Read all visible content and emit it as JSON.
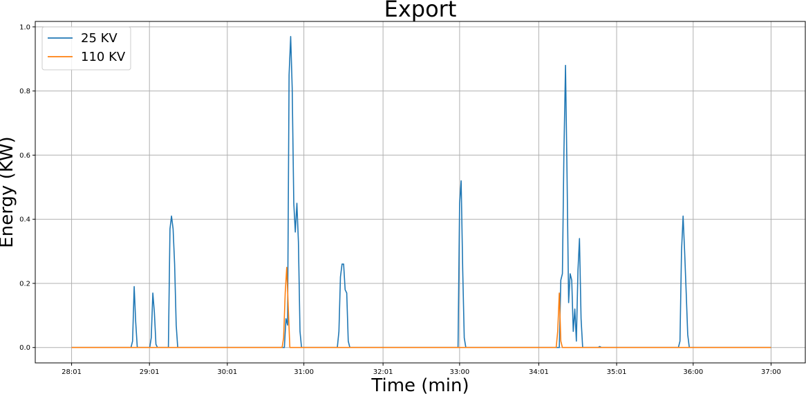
{
  "chart_data": {
    "type": "line",
    "title": "Export",
    "xlabel": "Time (min)",
    "ylabel": "Energy (KW)",
    "xlim": [
      27.55,
      37.44
    ],
    "ylim": [
      -0.048,
      1.017
    ],
    "x_ticks": [
      {
        "value": 28.0167,
        "label": "28:01"
      },
      {
        "value": 29.0167,
        "label": "29:01"
      },
      {
        "value": 30.0167,
        "label": "30:01"
      },
      {
        "value": 31.0,
        "label": "31:00"
      },
      {
        "value": 32.0167,
        "label": "32:01"
      },
      {
        "value": 33.0,
        "label": "33:00"
      },
      {
        "value": 34.0167,
        "label": "34:01"
      },
      {
        "value": 35.0167,
        "label": "35:01"
      },
      {
        "value": 36.0,
        "label": "36:00"
      },
      {
        "value": 37.0,
        "label": "37:00"
      }
    ],
    "y_ticks": [
      0.0,
      0.2,
      0.4,
      0.6,
      0.8,
      1.0
    ],
    "y_tick_labels": [
      "0.0",
      "0.2",
      "0.4",
      "0.6",
      "0.8",
      "1.0"
    ],
    "grid": true,
    "legend_position": "top-left",
    "series": [
      {
        "name": "25 KV",
        "color": "#1f77b4",
        "x": [
          28.0167,
          28.78,
          28.8,
          28.82,
          28.84,
          28.86,
          29.02,
          29.04,
          29.06,
          29.08,
          29.1,
          29.12,
          29.14,
          29.26,
          29.28,
          29.3,
          29.32,
          29.34,
          29.36,
          29.38,
          29.4,
          30.75,
          30.77,
          30.79,
          30.81,
          30.83,
          30.85,
          30.87,
          30.89,
          30.91,
          30.93,
          30.95,
          30.97,
          30.99,
          31.01,
          31.43,
          31.45,
          31.47,
          31.49,
          31.51,
          31.53,
          31.55,
          31.57,
          31.59,
          32.98,
          33.0,
          33.02,
          33.04,
          33.06,
          33.08,
          34.28,
          34.3,
          34.32,
          34.34,
          34.36,
          34.38,
          34.4,
          34.42,
          34.44,
          34.46,
          34.48,
          34.5,
          34.52,
          34.54,
          34.56,
          34.58,
          34.6,
          34.62,
          34.78,
          34.8,
          34.82,
          35.81,
          35.83,
          35.85,
          35.87,
          35.89,
          35.91,
          35.93,
          35.95,
          37.0
        ],
        "y": [
          0.0,
          0.0,
          0.02,
          0.19,
          0.08,
          0.0,
          0.0,
          0.03,
          0.17,
          0.11,
          0.01,
          0.0,
          0.0,
          0.0,
          0.37,
          0.41,
          0.37,
          0.26,
          0.07,
          0.0,
          0.0,
          0.0,
          0.09,
          0.07,
          0.85,
          0.97,
          0.81,
          0.45,
          0.36,
          0.45,
          0.33,
          0.05,
          0.0,
          0.0,
          0.0,
          0.0,
          0.05,
          0.22,
          0.26,
          0.26,
          0.18,
          0.17,
          0.02,
          0.0,
          0.0,
          0.45,
          0.52,
          0.24,
          0.03,
          0.0,
          0.0,
          0.21,
          0.23,
          0.61,
          0.88,
          0.54,
          0.14,
          0.23,
          0.21,
          0.05,
          0.12,
          0.02,
          0.24,
          0.34,
          0.09,
          0.0,
          0.0,
          0.0,
          0.0,
          0.003,
          0.0,
          0.0,
          0.02,
          0.3,
          0.41,
          0.3,
          0.17,
          0.04,
          0.0,
          0.0
        ]
      },
      {
        "name": "110 KV",
        "color": "#ff7f0e",
        "x": [
          28.0167,
          30.72,
          30.74,
          30.76,
          30.78,
          30.8,
          30.82,
          30.84,
          34.24,
          34.26,
          34.28,
          34.3,
          34.32,
          37.0
        ],
        "y": [
          0.0,
          0.0,
          0.03,
          0.17,
          0.25,
          0.12,
          0.0,
          0.0,
          0.0,
          0.05,
          0.17,
          0.02,
          0.0,
          0.0
        ]
      }
    ]
  }
}
